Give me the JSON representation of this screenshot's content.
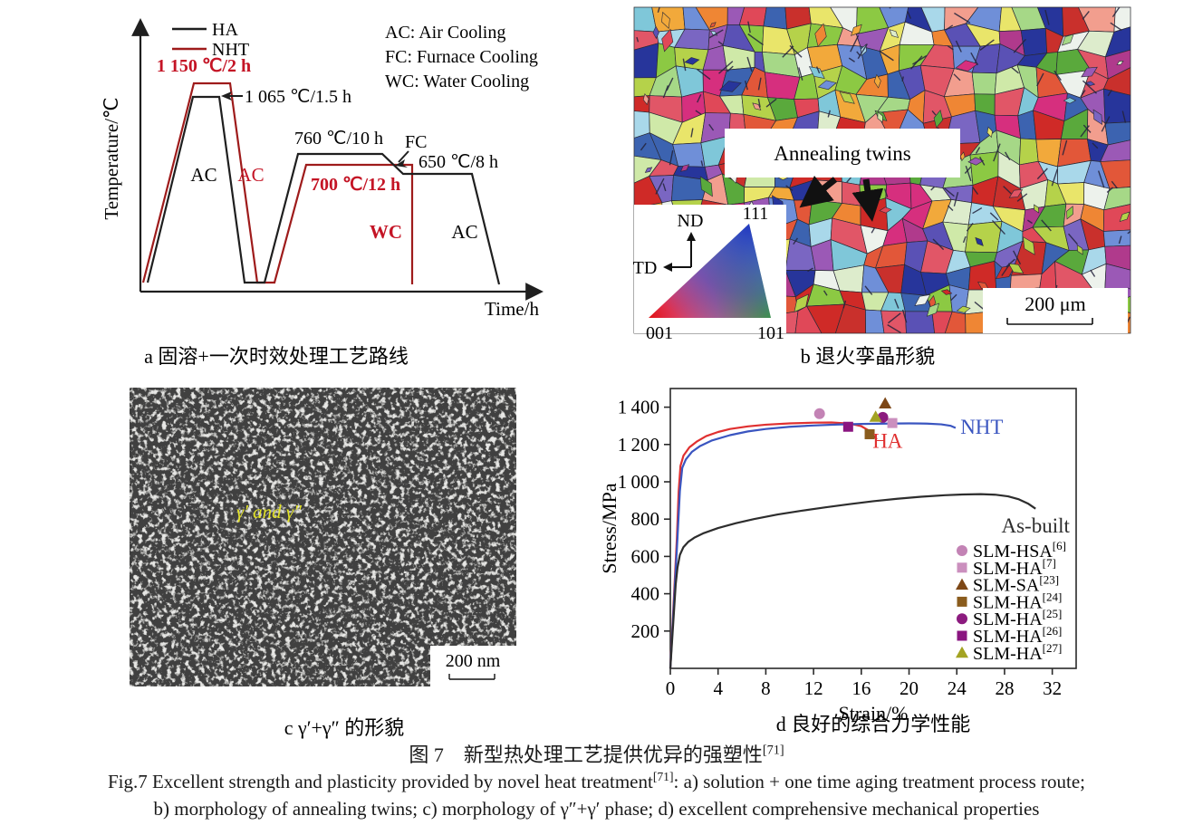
{
  "panel_a": {
    "caption": "a 固溶+一次时效处理工艺路线",
    "y_axis_label": "Temperature/℃",
    "x_axis_label": "Time/h",
    "legend": [
      {
        "label": "HA",
        "color": "#1f1f1f"
      },
      {
        "label": "NHT",
        "color": "#9e1b1b"
      }
    ],
    "abbreviations": [
      "AC: Air Cooling",
      "FC: Furnace Cooling",
      "WC: Water Cooling"
    ],
    "annotations": {
      "nht_solution": "1 150 ℃/2 h",
      "ha_solution": "1 065 ℃/1.5 h",
      "ha_aging1": "760 ℃/10 h",
      "fc": "FC",
      "ha_aging2": "650 ℃/8 h",
      "nht_aging": "700 ℃/12 h",
      "ac_black": "AC",
      "ac_red": "AC",
      "wc": "WC",
      "ac_final": "AC"
    },
    "colors": {
      "ha_line": "#1f1f1f",
      "nht_line": "#9e1b1b",
      "red_text": "#c41425"
    }
  },
  "panel_b": {
    "caption": "b 退火孪晶形貌",
    "annotation": "Annealing twins",
    "scale_bar": "200 μm",
    "ipf": {
      "nd": "ND",
      "td": "TD",
      "corner_top": "111",
      "corner_left": "001",
      "corner_right": "101"
    },
    "palette": [
      "#cf2a27",
      "#e25739",
      "#ef8634",
      "#f2a93b",
      "#b5d24a",
      "#8cc943",
      "#5aa93c",
      "#a6d887",
      "#cfe9a8",
      "#3c63b0",
      "#27359b",
      "#5a51b5",
      "#7a66c2",
      "#9b59b6",
      "#b03a8c",
      "#d62f7e",
      "#e15667",
      "#7fc7d9",
      "#a9d8ea",
      "#e9e56a",
      "#ddeccc",
      "#edf2ec",
      "#c9302c",
      "#f29e8e",
      "#6f8fd8",
      "#e04858"
    ]
  },
  "panel_c": {
    "caption": "c γ′+γ″ 的形貌",
    "annotation": "γ′ and γ″",
    "annotation_color": "#e3e329",
    "scale_bar": "200 nm"
  },
  "panel_d": {
    "caption": "d 良好的综合力学性能"
  },
  "chart_data": {
    "type": "line",
    "title": "",
    "xlabel": "Strain/%",
    "ylabel": "Stress/MPa",
    "xlim": [
      0,
      34
    ],
    "ylim": [
      0,
      1500
    ],
    "xticks": [
      0,
      4,
      8,
      12,
      16,
      20,
      24,
      28,
      32
    ],
    "yticks": [
      200,
      400,
      600,
      800,
      1000,
      1200,
      1400
    ],
    "grid": false,
    "legend_position": "inside lower right",
    "series": [
      {
        "name": "HA",
        "color": "#e03030",
        "points": [
          [
            0,
            0
          ],
          [
            0.55,
            700
          ],
          [
            0.7,
            950
          ],
          [
            0.85,
            1085
          ],
          [
            1.1,
            1140
          ],
          [
            1.6,
            1185
          ],
          [
            2.2,
            1215
          ],
          [
            3,
            1245
          ],
          [
            4,
            1267
          ],
          [
            5,
            1283
          ],
          [
            6.5,
            1297
          ],
          [
            8,
            1306
          ],
          [
            10,
            1313
          ],
          [
            12,
            1317
          ],
          [
            13.5,
            1318
          ],
          [
            15,
            1312
          ],
          [
            16,
            1298
          ],
          [
            16.7,
            1272
          ],
          [
            17.1,
            1243
          ],
          [
            17.3,
            1228
          ]
        ]
      },
      {
        "name": "NHT",
        "color": "#3a55c0",
        "points": [
          [
            0,
            0
          ],
          [
            0.6,
            700
          ],
          [
            0.8,
            950
          ],
          [
            1.0,
            1075
          ],
          [
            1.3,
            1120
          ],
          [
            1.8,
            1160
          ],
          [
            2.5,
            1192
          ],
          [
            3.5,
            1222
          ],
          [
            5,
            1250
          ],
          [
            6.5,
            1270
          ],
          [
            8,
            1283
          ],
          [
            10,
            1295
          ],
          [
            12,
            1302
          ],
          [
            14,
            1307
          ],
          [
            16,
            1310
          ],
          [
            18,
            1312
          ],
          [
            20,
            1313
          ],
          [
            21.5,
            1312
          ],
          [
            22.7,
            1308
          ],
          [
            23.5,
            1300
          ],
          [
            23.9,
            1289
          ]
        ]
      },
      {
        "name": "As-built",
        "color": "#2d2d2d",
        "points": [
          [
            0,
            0
          ],
          [
            0.45,
            450
          ],
          [
            0.6,
            540
          ],
          [
            0.8,
            608
          ],
          [
            1.1,
            650
          ],
          [
            1.5,
            678
          ],
          [
            2,
            700
          ],
          [
            2.8,
            725
          ],
          [
            4,
            752
          ],
          [
            5.5,
            778
          ],
          [
            7,
            800
          ],
          [
            9,
            825
          ],
          [
            11,
            845
          ],
          [
            13,
            863
          ],
          [
            15,
            880
          ],
          [
            17,
            896
          ],
          [
            19,
            909
          ],
          [
            21,
            920
          ],
          [
            23,
            928
          ],
          [
            24.5,
            932
          ],
          [
            26,
            934
          ],
          [
            27.2,
            931
          ],
          [
            28.3,
            922
          ],
          [
            29.2,
            906
          ],
          [
            30,
            882
          ],
          [
            30.6,
            856
          ]
        ]
      }
    ],
    "scatter": [
      {
        "name": "SLM-HSA",
        "ref": "[6]",
        "marker": "circle",
        "color": "#c383b5",
        "x": 12.5,
        "y": 1365
      },
      {
        "name": "SLM-HA",
        "ref": "[7]",
        "marker": "square",
        "color": "#cb8fbe",
        "x": 18.6,
        "y": 1315
      },
      {
        "name": "SLM-SA",
        "ref": "[23]",
        "marker": "triangle",
        "color": "#7d4716",
        "x": 18.0,
        "y": 1420
      },
      {
        "name": "SLM-HA",
        "ref": "[24]",
        "marker": "square",
        "color": "#8a5c1d",
        "x": 16.7,
        "y": 1255
      },
      {
        "name": "SLM-HA",
        "ref": "[25]",
        "marker": "circle",
        "color": "#8c1b7f",
        "x": 17.8,
        "y": 1345
      },
      {
        "name": "SLM-HA",
        "ref": "[26]",
        "marker": "square",
        "color": "#8a1580",
        "x": 14.9,
        "y": 1295
      },
      {
        "name": "SLM-HA",
        "ref": "[27]",
        "marker": "triangle",
        "color": "#a3a322",
        "x": 17.2,
        "y": 1348
      }
    ],
    "curve_labels": [
      {
        "text": "HA",
        "color": "#e03030",
        "x": 18.2,
        "y": 1222,
        "anchor": "middle"
      },
      {
        "text": "NHT",
        "color": "#3a55c0",
        "x": 24.3,
        "y": 1296,
        "anchor": "start"
      },
      {
        "text": "As-built",
        "color": "#2d2d2d",
        "x": 30.6,
        "y": 768,
        "anchor": "middle"
      }
    ]
  },
  "figure_captions": {
    "zh": {
      "text": "图 7　新型热处理工艺提供优异的强塑性",
      "ref": "[71]"
    },
    "en1": {
      "pre": "Fig.7 Excellent strength and plasticity provided by novel heat treatment",
      "ref": "[71]",
      "post": ": a) solution + one time aging treatment process route;"
    },
    "en2": "b) morphology of annealing twins; c) morphology of γ″+γ′ phase; d) excellent comprehensive mechanical properties"
  }
}
